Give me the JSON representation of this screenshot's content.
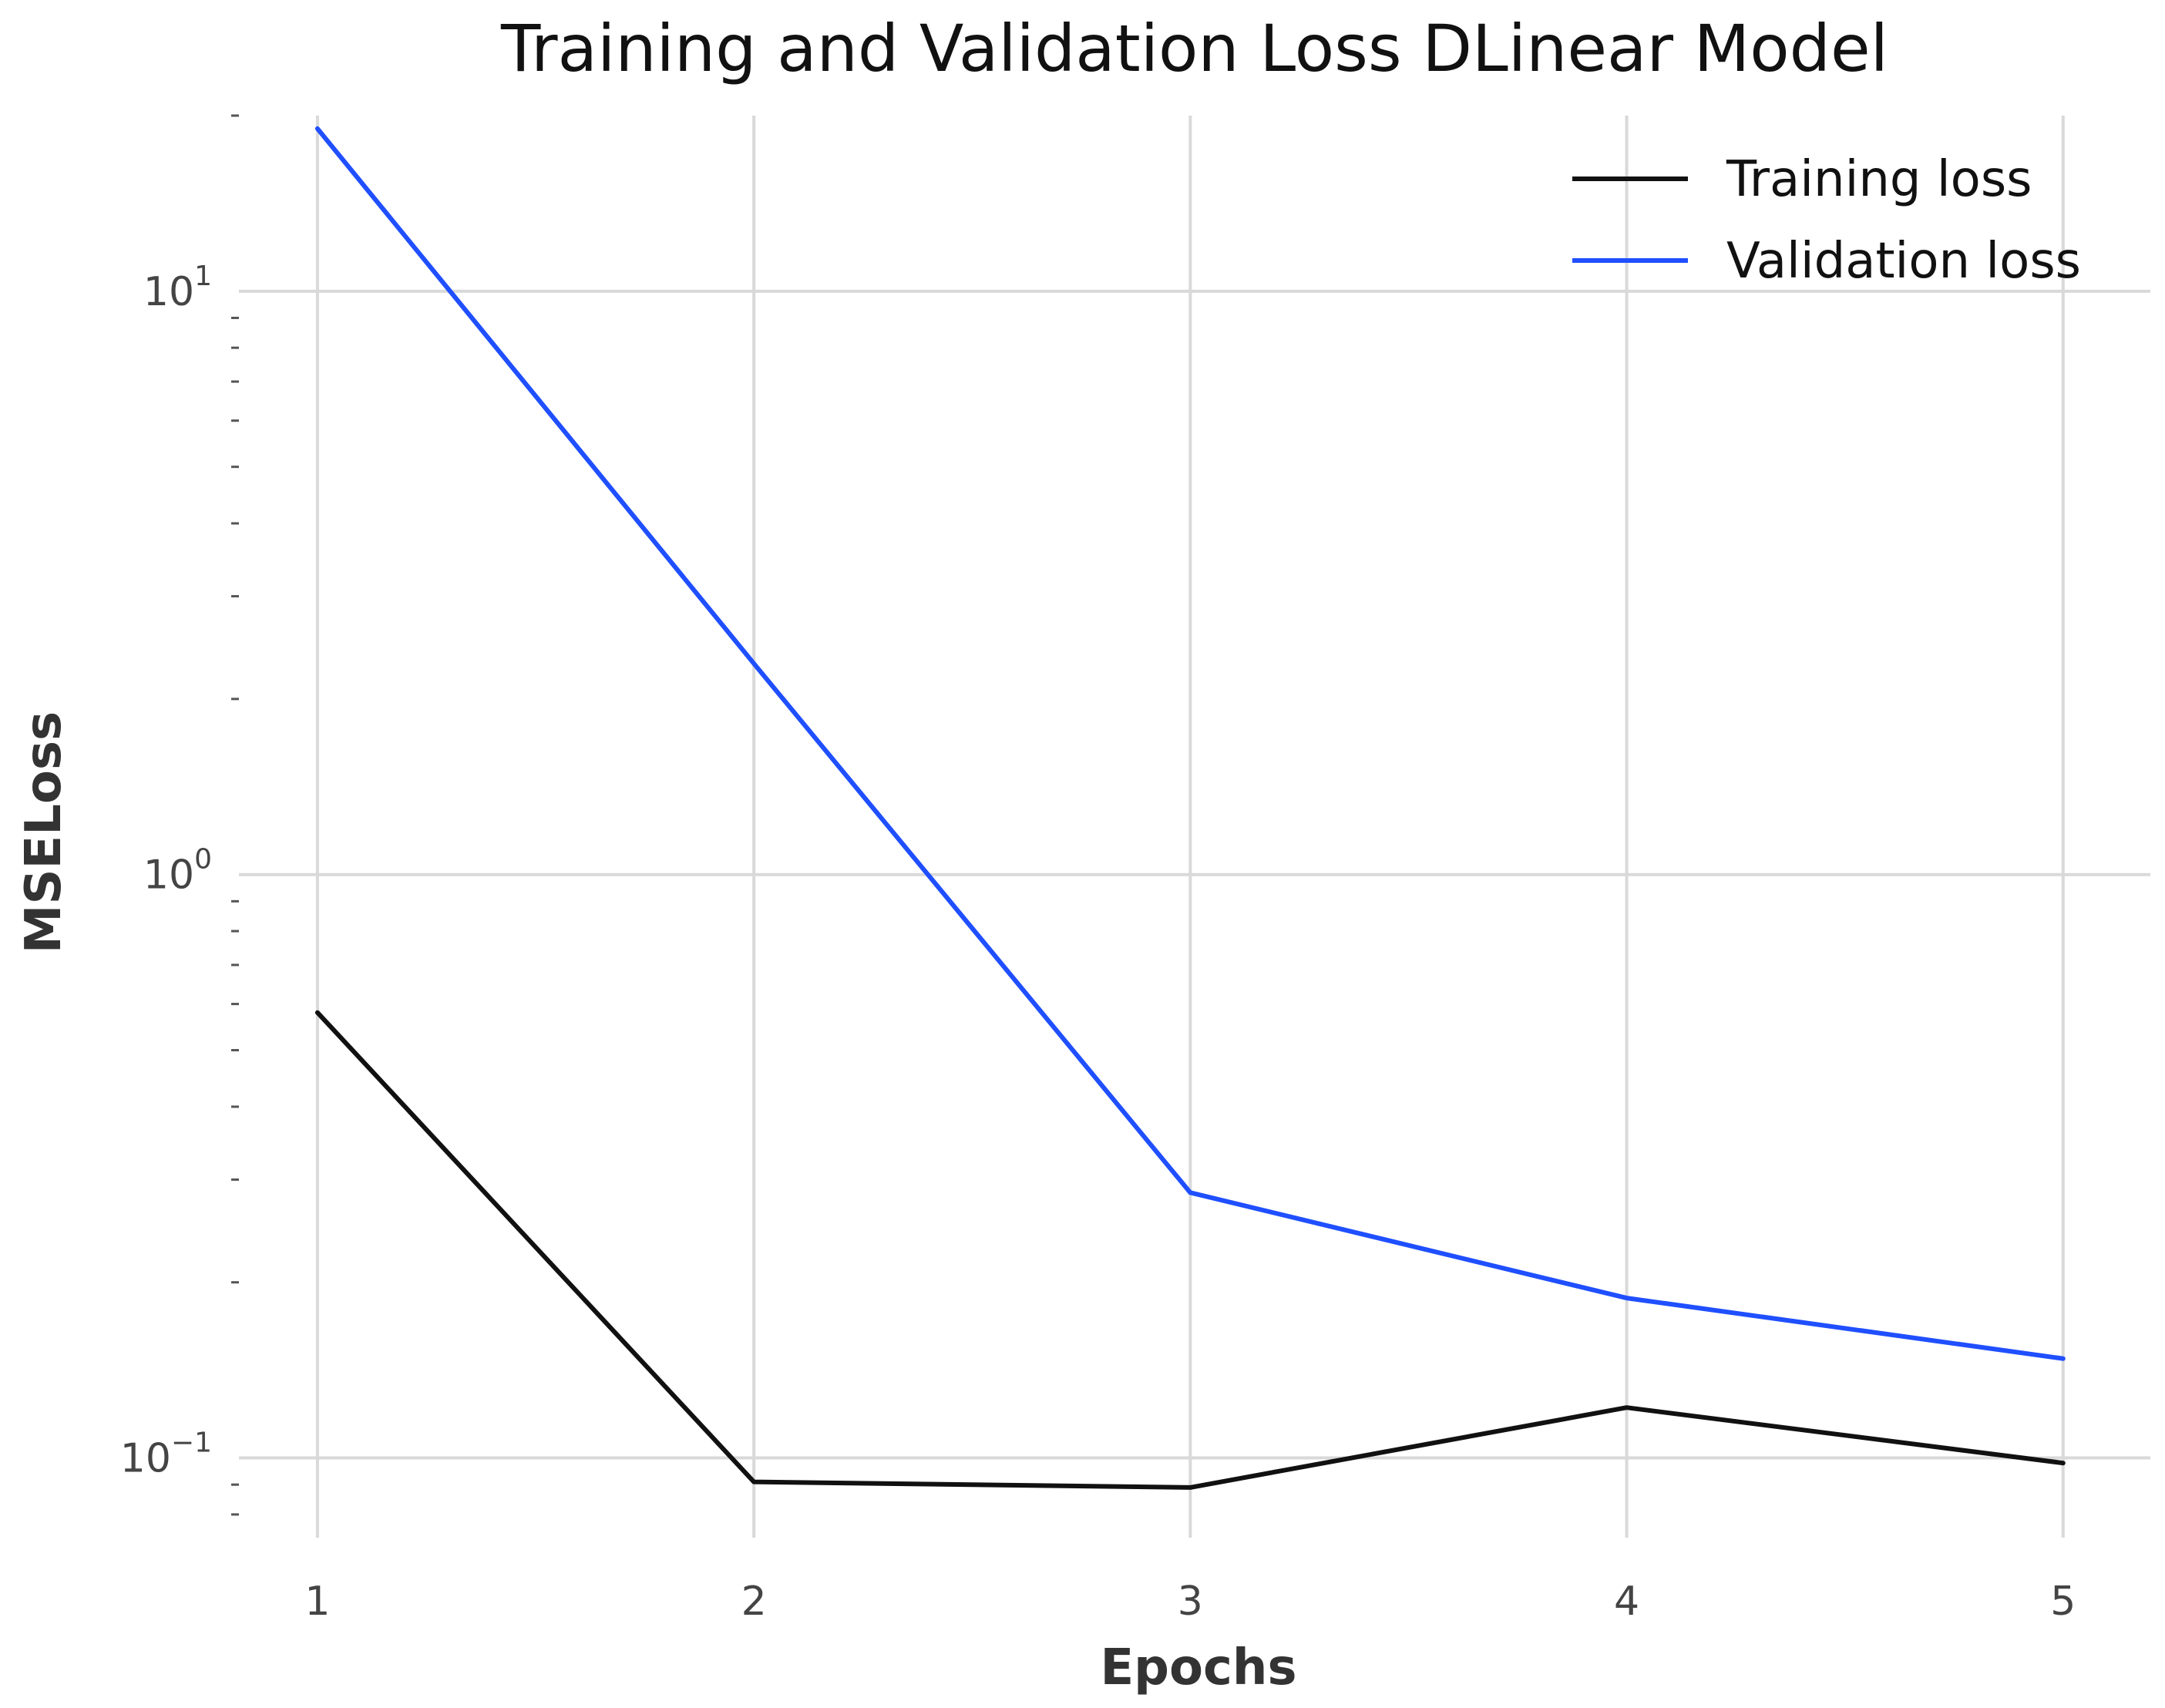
{
  "chart_data": {
    "type": "line",
    "title": "Training and Validation Loss DLinear Model",
    "xlabel": "Epochs",
    "ylabel": "MSELoss",
    "yscale": "log",
    "ylim": [
      0.073,
      20.0
    ],
    "xlim": [
      0.82,
      5.2
    ],
    "x": [
      1,
      2,
      3,
      4,
      5
    ],
    "x_ticks": [
      "1",
      "2",
      "3",
      "4",
      "5"
    ],
    "y_ticks": [
      {
        "value": 0.1,
        "base": "10",
        "exp": "−1"
      },
      {
        "value": 1,
        "base": "10",
        "exp": "0"
      },
      {
        "value": 10,
        "base": "10",
        "exp": "1"
      }
    ],
    "grid": true,
    "legend_position": "top-right",
    "series": [
      {
        "name": "Training loss",
        "color": "#111111",
        "values": [
          0.58,
          0.091,
          0.089,
          0.122,
          0.098
        ]
      },
      {
        "name": "Validation loss",
        "color": "#1f4fff",
        "values": [
          19.0,
          2.3,
          0.285,
          0.188,
          0.148
        ]
      }
    ]
  }
}
